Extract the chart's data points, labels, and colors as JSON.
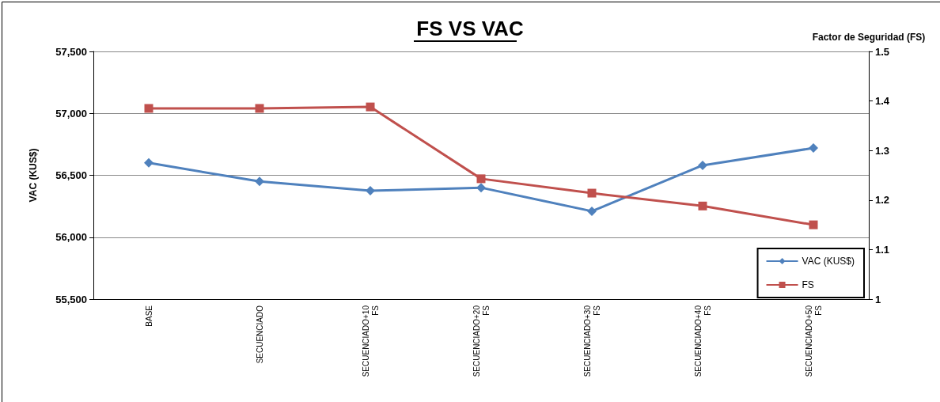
{
  "chart_data": {
    "type": "line",
    "title": "FS VS VAC",
    "ylabel": "VAC (KUS$)",
    "y2label": "Factor de Seguridad (FS)",
    "categories": [
      "BASE",
      "SECUENCIADO",
      "SECUENCIADO+10 FS",
      "SECUENCIADO+20 FS",
      "SECUENCIADO+30 FS",
      "SECUENCIADO+40 FS",
      "SECUENCIADO+50 FS"
    ],
    "series": [
      {
        "name": "VAC (KUS$)",
        "color": "#4f81bd",
        "marker": "diamond",
        "values": [
          56600,
          56450,
          56375,
          56400,
          56210,
          56580,
          56720
        ]
      },
      {
        "name": "FS",
        "color": "#c0504d",
        "marker": "square",
        "axis": "y2",
        "values": [
          1.385,
          1.385,
          1.388,
          1.243,
          1.214,
          1.188,
          1.15
        ]
      }
    ],
    "ylim": [
      55500,
      57500
    ],
    "yticks": [
      {
        "value": 55500,
        "label": "55,500"
      },
      {
        "value": 56000,
        "label": "56,000"
      },
      {
        "value": 56500,
        "label": "56,500"
      },
      {
        "value": 57000,
        "label": "57,000"
      },
      {
        "value": 57500,
        "label": "57,500"
      }
    ],
    "y2lim": [
      1,
      1.5
    ],
    "y2ticks": [
      1,
      1.1,
      1.2,
      1.3,
      1.4,
      1.5
    ],
    "grid": "y",
    "legend": "bottom right"
  }
}
